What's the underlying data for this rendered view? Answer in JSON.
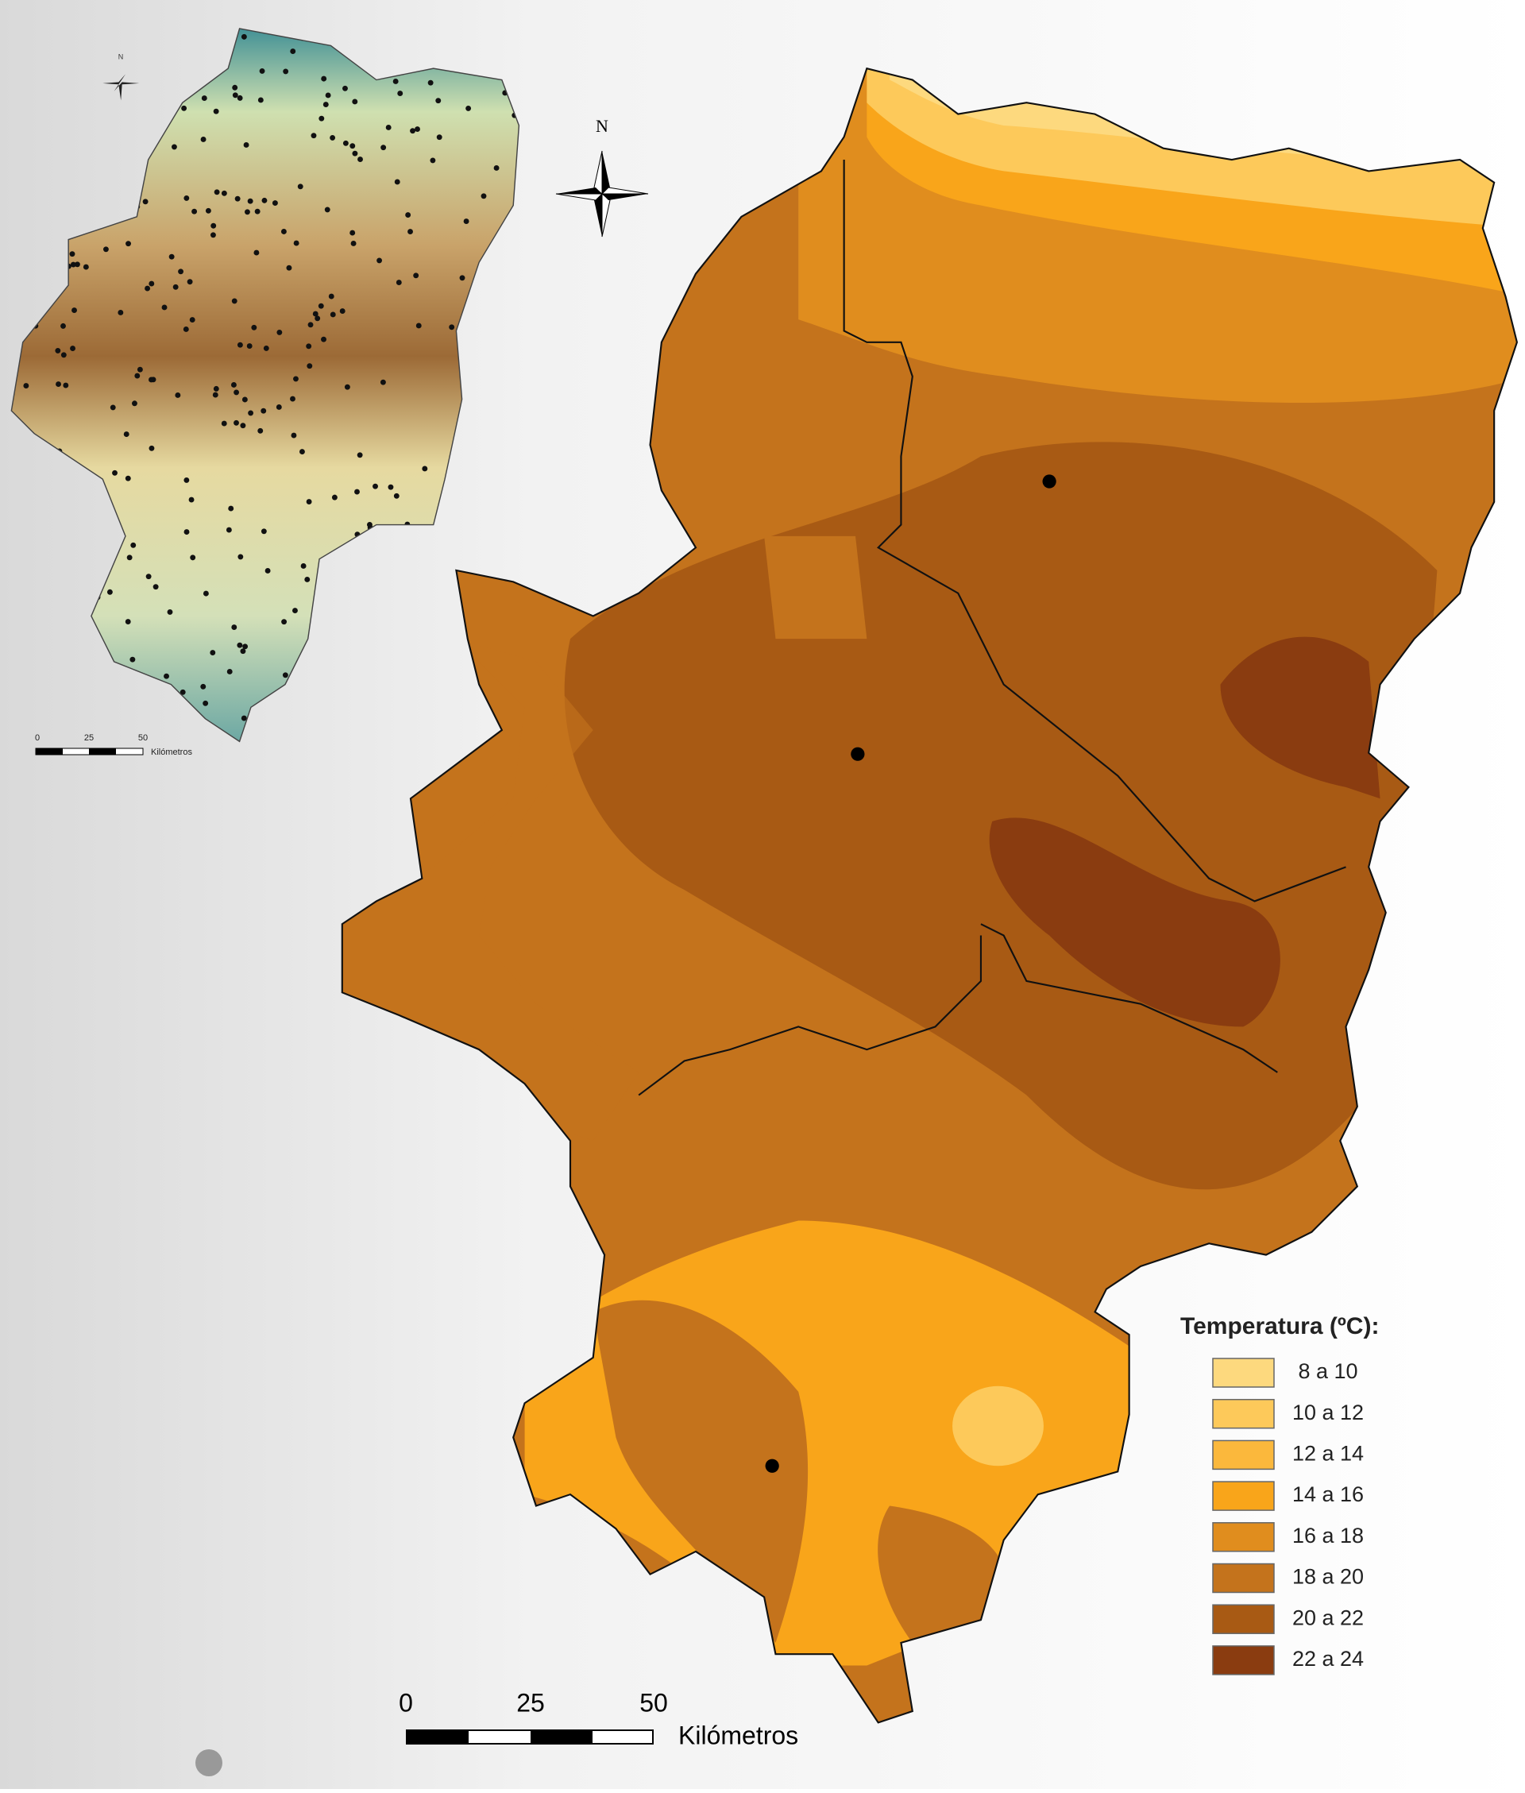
{
  "north_label": "N",
  "inset": {
    "north_label": "N",
    "scale_labels": [
      "0",
      "25",
      "50"
    ],
    "scale_unit": "Kilómetros"
  },
  "scale": {
    "labels": [
      "0",
      "25",
      "50"
    ],
    "unit": "Kilómetros"
  },
  "legend": {
    "title": "Temperatura (ºC):",
    "items": [
      {
        "label": "8 a 10",
        "color": "#fdd97e"
      },
      {
        "label": "10 a 12",
        "color": "#fdc95a"
      },
      {
        "label": "12 a 14",
        "color": "#fbb83c"
      },
      {
        "label": "14 a 16",
        "color": "#f9a51a"
      },
      {
        "label": "16 a 18",
        "color": "#e08d1e"
      },
      {
        "label": "18 a 20",
        "color": "#c4731c"
      },
      {
        "label": "20 a 22",
        "color": "#a85a14"
      },
      {
        "label": "22 a 24",
        "color": "#8a3c10"
      }
    ]
  }
}
